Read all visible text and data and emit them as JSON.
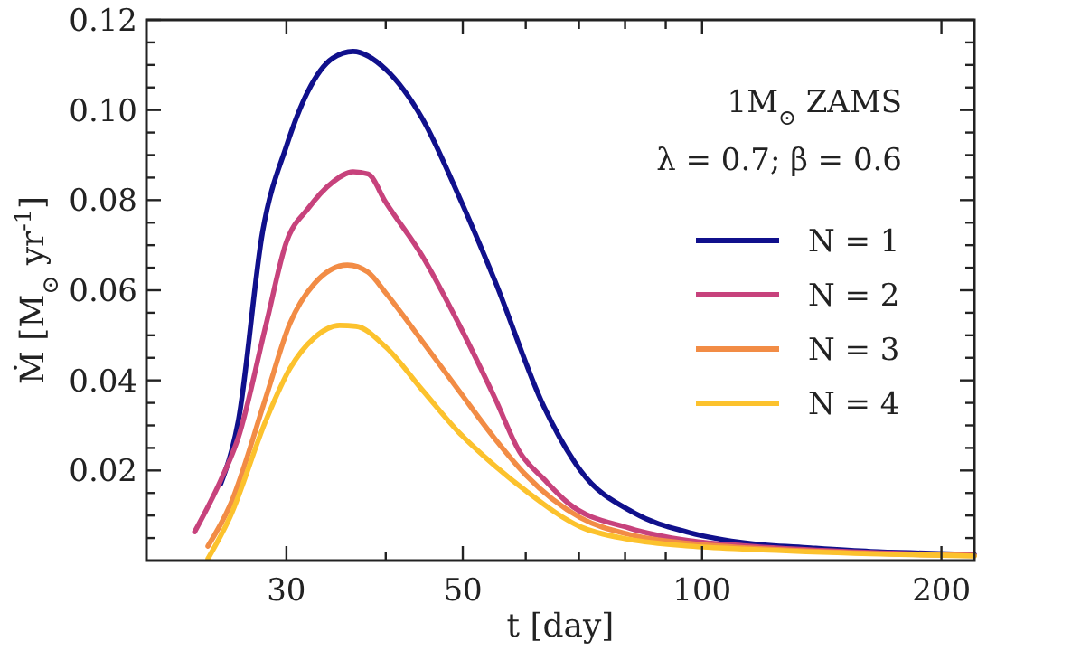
{
  "chart_data": {
    "type": "line",
    "xlabel": "t [day]",
    "ylabel": "Ṁ [M$_{⊙}$ yr$^{-1}$]",
    "annotations": [
      "1M$_{⊙}$ ZAMS",
      "λ = 0.7; β = 0.6"
    ],
    "log": "x",
    "xlim": [
      20,
      220
    ],
    "xticks": [
      {
        "value": 30,
        "label": "30"
      },
      {
        "value": 40,
        "label": null
      },
      {
        "value": 50,
        "label": "50"
      },
      {
        "value": 60,
        "label": null
      },
      {
        "value": 70,
        "label": null
      },
      {
        "value": 80,
        "label": null
      },
      {
        "value": 90,
        "label": null
      },
      {
        "value": 100,
        "label": "100"
      },
      {
        "value": 200,
        "label": "200"
      }
    ],
    "ylim": [
      0,
      0.12
    ],
    "yticks": [
      {
        "value": 0.005,
        "label": null
      },
      {
        "value": 0.01,
        "label": null
      },
      {
        "value": 0.015,
        "label": null
      },
      0.02,
      {
        "value": 0.025,
        "label": null
      },
      {
        "value": 0.03,
        "label": null
      },
      {
        "value": 0.035,
        "label": null
      },
      0.04,
      {
        "value": 0.045,
        "label": null
      },
      {
        "value": 0.05,
        "label": null
      },
      {
        "value": 0.055,
        "label": null
      },
      0.06,
      {
        "value": 0.065,
        "label": null
      },
      {
        "value": 0.07,
        "label": null
      },
      {
        "value": 0.075,
        "label": null
      },
      0.08,
      {
        "value": 0.085,
        "label": null
      },
      {
        "value": 0.09,
        "label": null
      },
      {
        "value": 0.095,
        "label": null
      },
      {
        "value": 0.1,
        "label": "0.10"
      },
      {
        "value": 0.105,
        "label": null
      },
      {
        "value": 0.11,
        "label": null
      },
      {
        "value": 0.115,
        "label": null
      },
      0.12
    ],
    "grid": false,
    "legend": "right",
    "marker": "none",
    "line_style": "solid",
    "series": [
      {
        "name": "N = 1",
        "color": "#10108c",
        "x": [
          24.8,
          26.1,
          28,
          30,
          31.9,
          34.3,
          36.4,
          40,
          44.5,
          49.4,
          54.9,
          63.3,
          70.3,
          82.3,
          96.4,
          114.6,
          137,
          163,
          194,
          220
        ],
        "values": [
          0.017,
          0.031,
          0.073,
          0.092,
          0.104,
          0.1115,
          0.113,
          0.109,
          0.098,
          0.081,
          0.062,
          0.034,
          0.02,
          0.0105,
          0.0062,
          0.0038,
          0.0028,
          0.002,
          0.0016,
          0.0013
        ]
      },
      {
        "name": "N = 2",
        "color": "#c7427c",
        "x": [
          23,
          24.8,
          26.1,
          28.3,
          30,
          31.9,
          34.3,
          36.4,
          38,
          40,
          44.5,
          49.4,
          54.9,
          59,
          63.3,
          67.8,
          81,
          96.4,
          114.6,
          163,
          220
        ],
        "values": [
          0.0064,
          0.0178,
          0.0273,
          0.0526,
          0.0707,
          0.078,
          0.084,
          0.0863,
          0.0858,
          0.0795,
          0.0675,
          0.0526,
          0.036,
          0.024,
          0.018,
          0.0128,
          0.0072,
          0.0044,
          0.0032,
          0.0018,
          0.0012
        ]
      },
      {
        "name": "N = 3",
        "color": "#f28c45",
        "x": [
          23.9,
          25.5,
          28.3,
          30.3,
          32.5,
          35.8,
          38,
          40,
          44.5,
          49.4,
          54.9,
          60,
          70.3,
          81,
          96.4,
          114.6,
          163,
          220
        ],
        "values": [
          0.0032,
          0.0124,
          0.0365,
          0.0526,
          0.0614,
          0.0656,
          0.064,
          0.0594,
          0.0486,
          0.0378,
          0.027,
          0.019,
          0.0095,
          0.0058,
          0.0038,
          0.0028,
          0.0016,
          0.0011
        ]
      },
      {
        "name": "N = 4",
        "color": "#fcc22d",
        "x": [
          23.9,
          25.5,
          28.3,
          30.3,
          32.5,
          35,
          36.7,
          40,
          44.5,
          49.4,
          54.9,
          60,
          70.3,
          81,
          96.4,
          114.6,
          163,
          220
        ],
        "values": [
          0.0004,
          0.0098,
          0.0313,
          0.0426,
          0.0494,
          0.0522,
          0.052,
          0.0474,
          0.0378,
          0.0285,
          0.021,
          0.0155,
          0.0075,
          0.0047,
          0.0032,
          0.0025,
          0.0015,
          0.001
        ]
      }
    ]
  }
}
